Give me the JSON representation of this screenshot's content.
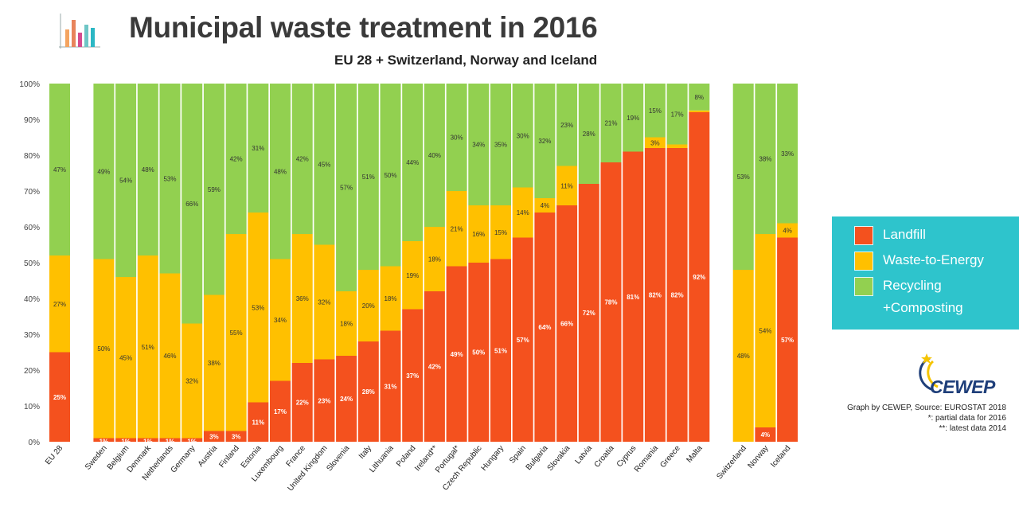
{
  "header": {
    "title": "Municipal waste treatment in 2016",
    "subtitle": "EU 28 + Switzerland, Norway and Iceland"
  },
  "legend": {
    "items": [
      {
        "label": "Landfill",
        "color": "#f4511e"
      },
      {
        "label": "Waste-to-Energy",
        "color": "#ffc000"
      },
      {
        "label": "Recycling",
        "label2": "+Composting",
        "color": "#92d050"
      }
    ]
  },
  "footer": {
    "brand": "CEWEP",
    "source": "Graph by CEWEP, Source: EUROSTAT 2018",
    "note1": "*: partial data for 2016",
    "note2": "**: latest data 2014"
  },
  "chart_data": {
    "type": "bar",
    "stacked": true,
    "ylim": [
      0,
      100
    ],
    "yticks": [
      "0%",
      "10%",
      "20%",
      "30%",
      "40%",
      "50%",
      "60%",
      "70%",
      "80%",
      "90%",
      "100%"
    ],
    "grid": false,
    "legend_position": "right",
    "categories": [
      "EU 28",
      "",
      "Sweden",
      "Belgium",
      "Denmark",
      "Netherlands",
      "Germany",
      "Austria",
      "Finland",
      "Estonia",
      "Luxembourg",
      "France",
      "United Kingdom",
      "Slovenia",
      "Italy",
      "Lithuania",
      "Poland",
      "Ireland**",
      "Portugal*",
      "Czech Republic",
      "Hungary",
      "Spain",
      "Bulgaria",
      "Slovakia",
      "Latvia",
      "Croatia",
      "Cyprus",
      "Romania",
      "Greece",
      "Malta",
      "",
      "Switzerland",
      "Norway",
      "Iceland"
    ],
    "series": [
      {
        "name": "Landfill",
        "color": "#f4511e",
        "values": [
          25,
          null,
          1,
          1,
          1,
          1,
          1,
          3,
          3,
          11,
          17,
          22,
          23,
          24,
          28,
          31,
          37,
          42,
          49,
          50,
          51,
          57,
          64,
          66,
          72,
          78,
          81,
          82,
          82,
          92,
          null,
          0,
          4,
          57
        ],
        "labels": [
          "25%",
          "",
          "1%",
          "1%",
          "1%",
          "1%",
          "1%",
          "3%",
          "3%",
          "11%",
          "17%",
          "22%",
          "23%",
          "24%",
          "28%",
          "31%",
          "37%",
          "42%",
          "49%",
          "50%",
          "51%",
          "57%",
          "64%",
          "66%",
          "72%",
          "78%",
          "81%",
          "82%",
          "82%",
          "92%",
          "",
          "",
          "4%",
          "57%"
        ]
      },
      {
        "name": "Waste-to-Energy",
        "color": "#ffc000",
        "values": [
          27,
          null,
          50,
          45,
          51,
          46,
          32,
          38,
          55,
          53,
          34,
          36,
          32,
          18,
          20,
          18,
          19,
          18,
          21,
          16,
          15,
          14,
          4,
          11,
          0,
          0,
          0,
          3,
          1,
          0.5,
          null,
          48,
          54,
          4
        ],
        "labels": [
          "27%",
          "",
          "50%",
          "45%",
          "51%",
          "46%",
          "32%",
          "38%",
          "55%",
          "53%",
          "34%",
          "36%",
          "32%",
          "18%",
          "20%",
          "18%",
          "19%",
          "18%",
          "21%",
          "16%",
          "15%",
          "14%",
          "4%",
          "11%",
          "",
          "",
          "",
          "3%",
          "",
          "",
          "",
          "48%",
          "54%",
          "4%"
        ]
      },
      {
        "name": "Recycling +Composting",
        "color": "#92d050",
        "values": [
          47,
          null,
          49,
          54,
          48,
          53,
          66,
          59,
          42,
          31,
          48,
          42,
          45,
          57,
          51,
          50,
          44,
          40,
          30,
          34,
          35,
          30,
          32,
          23,
          28,
          21,
          19,
          15,
          17,
          8,
          null,
          53,
          38,
          33
        ],
        "labels": [
          "47%",
          "",
          "49%",
          "54%",
          "48%",
          "53%",
          "66%",
          "59%",
          "42%",
          "31%",
          "48%",
          "42%",
          "45%",
          "57%",
          "51%",
          "50%",
          "44%",
          "40%",
          "30%",
          "34%",
          "35%",
          "30%",
          "32%",
          "23%",
          "28%",
          "21%",
          "19%",
          "15%",
          "17%",
          "8%",
          "",
          "53%",
          "38%",
          "33%"
        ]
      }
    ]
  }
}
